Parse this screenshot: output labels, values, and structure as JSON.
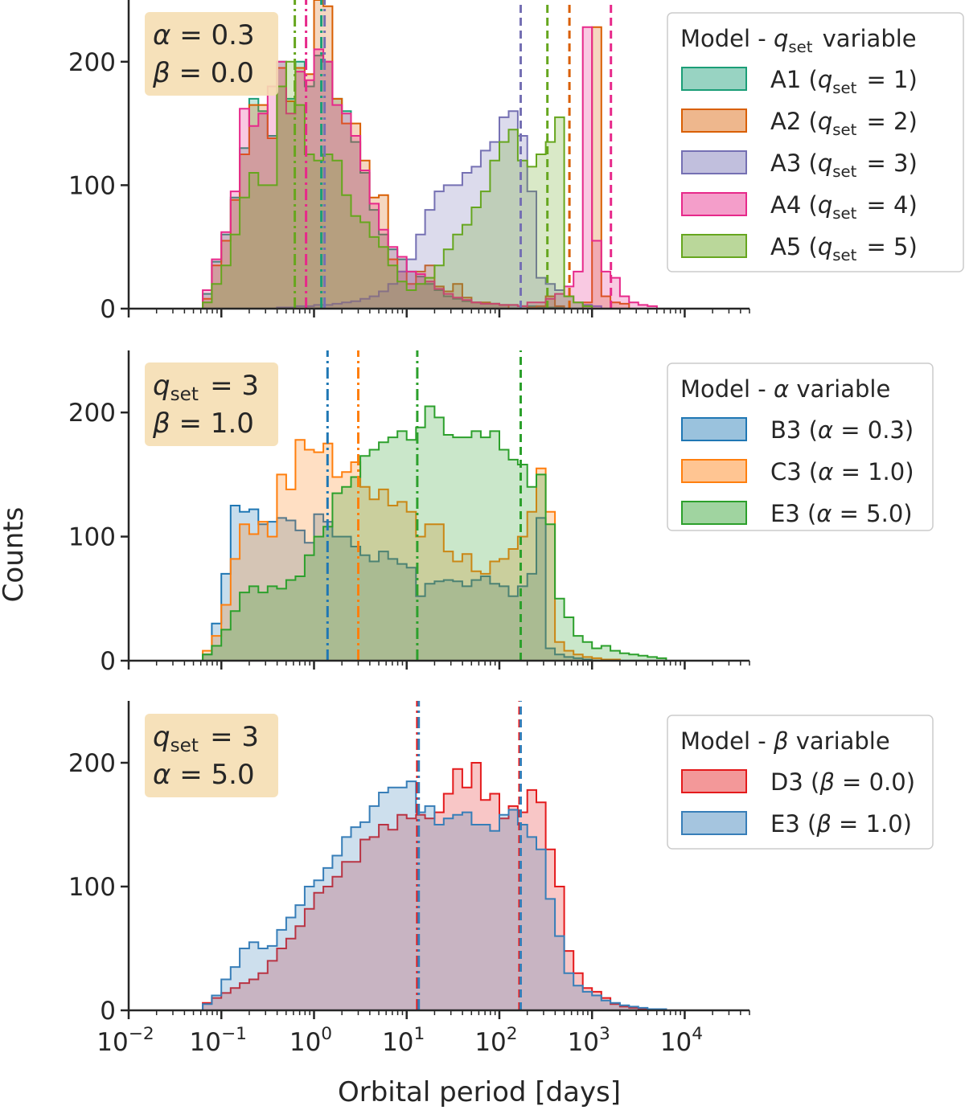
{
  "chart_data": {
    "type": "histogram",
    "xlabel": "Orbital period [days]",
    "ylabel": "Counts",
    "xscale": "log",
    "xlim": [
      0.01,
      50000
    ],
    "x_ticks": [
      {
        "value": 0.01,
        "base": "10",
        "exp": "−2"
      },
      {
        "value": 0.1,
        "base": "10",
        "exp": "−1"
      },
      {
        "value": 1,
        "base": "10",
        "exp": "0"
      },
      {
        "value": 10,
        "base": "10",
        "exp": "1"
      },
      {
        "value": 100,
        "base": "10",
        "exp": "2"
      },
      {
        "value": 1000,
        "base": "10",
        "exp": "3"
      },
      {
        "value": 10000,
        "base": "10",
        "exp": "4"
      }
    ],
    "ylim": [
      0,
      250
    ],
    "y_ticks": [
      0,
      100,
      200
    ],
    "bin_edges": [
      0.063,
      0.079,
      0.1,
      0.126,
      0.158,
      0.2,
      0.251,
      0.316,
      0.398,
      0.501,
      0.631,
      0.794,
      1.0,
      1.26,
      1.58,
      2.0,
      2.51,
      3.16,
      3.98,
      5.01,
      6.31,
      7.94,
      10.0,
      12.6,
      15.8,
      20.0,
      25.1,
      31.6,
      39.8,
      50.1,
      63.1,
      79.4,
      100,
      126,
      158,
      200,
      251,
      316,
      398,
      501,
      631,
      794,
      1000,
      1260,
      1580,
      2000,
      2510,
      3160,
      3980,
      5010,
      6310,
      7940,
      10000
    ],
    "panels": [
      {
        "annotation": [
          "α = 0.3",
          "β = 0.0"
        ],
        "legend_title": "Model - q_set variable",
        "series": [
          {
            "name": "A1",
            "label": "A1 (q_set = 1)",
            "color": "#1b9e77",
            "values": [
              12,
              38,
              60,
              90,
              130,
              170,
              160,
              140,
              200,
              170,
              200,
              180,
              205,
              200,
              170,
              160,
              135,
              110,
              80,
              60,
              48,
              40,
              30,
              26,
              20,
              15,
              10,
              8,
              6,
              5,
              4,
              4,
              3,
              3,
              2,
              2,
              1,
              1,
              1,
              0,
              0,
              0,
              0,
              0,
              0,
              0,
              0,
              0,
              0,
              0,
              0,
              0
            ],
            "median": 1.2,
            "median_style": "dashdot"
          },
          {
            "name": "A2",
            "label": "A2 (q_set = 2)",
            "color": "#d95f02",
            "values": [
              8,
              35,
              55,
              88,
              125,
              165,
              165,
              138,
              195,
              168,
              195,
              190,
              250,
              245,
              170,
              150,
              150,
              120,
              90,
              92,
              40,
              30,
              20,
              30,
              35,
              18,
              14,
              20,
              9,
              5,
              5,
              4,
              3,
              0,
              0,
              1,
              2,
              10,
              2,
              0,
              0,
              5,
              228,
              10,
              5,
              4,
              0,
              0,
              0,
              0,
              0,
              0
            ],
            "median": 570,
            "median_style": "dashed"
          },
          {
            "name": "A3",
            "label": "A3 (q_set = 3)",
            "color": "#7570b3",
            "values": [
              0,
              0,
              0,
              0,
              0,
              0,
              0,
              0,
              1,
              1,
              2,
              2,
              3,
              3,
              4,
              5,
              6,
              8,
              10,
              14,
              20,
              30,
              40,
              60,
              80,
              95,
              100,
              100,
              110,
              115,
              128,
              135,
              155,
              160,
              140,
              95,
              25,
              20,
              15,
              10,
              5,
              3,
              2,
              0,
              0,
              0,
              0,
              0,
              0,
              0,
              0,
              0
            ],
            "median": 170,
            "median_style": "dashed"
          },
          {
            "name": "A4",
            "label": "A4 (q_set = 4)",
            "color": "#e7298a",
            "values": [
              15,
              40,
              62,
              95,
              162,
              148,
              158,
              180,
              200,
              158,
              192,
              185,
              210,
              200,
              165,
              158,
              140,
              112,
              85,
              64,
              50,
              42,
              30,
              28,
              22,
              16,
              12,
              9,
              7,
              5,
              4,
              4,
              3,
              3,
              2,
              5,
              5,
              8,
              12,
              18,
              30,
              228,
              55,
              30,
              25,
              10,
              5,
              3,
              2,
              0,
              0,
              0
            ],
            "median": 1600,
            "median_style": "dashed"
          },
          {
            "name": "A5",
            "label": "A5 (q_set = 5)",
            "color": "#66a61e",
            "values": [
              5,
              20,
              35,
              60,
              90,
              110,
              100,
              100,
              180,
              200,
              165,
              125,
              120,
              125,
              120,
              92,
              75,
              70,
              58,
              50,
              35,
              22,
              15,
              20,
              25,
              35,
              48,
              60,
              68,
              82,
              95,
              120,
              135,
              145,
              120,
              115,
              125,
              135,
              155,
              10,
              5,
              2,
              0,
              0,
              0,
              0,
              0,
              0,
              0,
              0,
              0,
              0
            ],
            "median": 330,
            "median_style": "dashed"
          }
        ],
        "median_lines": [
          {
            "x": 0.62,
            "color": "#66a61e",
            "style": "dashdot"
          },
          {
            "x": 0.82,
            "color": "#e7298a",
            "style": "dashdot"
          },
          {
            "x": 1.2,
            "color": "#1b9e77",
            "style": "dashdot"
          },
          {
            "x": 1.3,
            "color": "#7570b3",
            "style": "dashdot"
          },
          {
            "x": 170,
            "color": "#7570b3",
            "style": "dashed"
          },
          {
            "x": 330,
            "color": "#66a61e",
            "style": "dashed"
          },
          {
            "x": 570,
            "color": "#d95f02",
            "style": "dashed"
          },
          {
            "x": 1600,
            "color": "#e7298a",
            "style": "dashed"
          }
        ]
      },
      {
        "annotation": [
          "q_set = 3",
          "β = 1.0"
        ],
        "legend_title": "Model - α variable",
        "series": [
          {
            "name": "B3",
            "label": "B3 (α = 0.3)",
            "color": "#1f77b4",
            "values": [
              5,
              30,
              70,
              125,
              120,
              122,
              110,
              112,
              115,
              113,
              105,
              95,
              118,
              112,
              100,
              100,
              92,
              85,
              80,
              88,
              82,
              78,
              75,
              52,
              62,
              64,
              65,
              64,
              60,
              65,
              68,
              62,
              60,
              52,
              60,
              70,
              115,
              10,
              5,
              3,
              2,
              1,
              0,
              0,
              0,
              0,
              0,
              0,
              0,
              0,
              0,
              0
            ],
            "median": 1.4,
            "median_style": "dashdot"
          },
          {
            "name": "C3",
            "label": "C3 (α = 1.0)",
            "color": "#ff7f0e",
            "values": [
              8,
              20,
              45,
              82,
              110,
              102,
              112,
              100,
              150,
              138,
              178,
              170,
              168,
              175,
              148,
              152,
              160,
              140,
              130,
              138,
              125,
              128,
              120,
              100,
              110,
              110,
              88,
              80,
              86,
              72,
              70,
              80,
              82,
              90,
              100,
              120,
              155,
              120,
              15,
              8,
              5,
              3,
              2,
              1,
              1,
              0,
              0,
              0,
              0,
              0,
              0,
              0
            ],
            "median": 3.0,
            "median_style": "dashdot"
          },
          {
            "name": "E3",
            "label": "E3 (α = 5.0)",
            "color": "#2ca02c",
            "values": [
              5,
              12,
              25,
              40,
              55,
              60,
              55,
              60,
              58,
              65,
              68,
              85,
              100,
              108,
              135,
              140,
              148,
              165,
              170,
              176,
              180,
              185,
              178,
              188,
              205,
              196,
              182,
              180,
              180,
              185,
              180,
              185,
              170,
              162,
              158,
              140,
              150,
              110,
              50,
              35,
              20,
              15,
              10,
              12,
              8,
              6,
              5,
              4,
              3,
              2,
              0,
              0
            ],
            "median": 13,
            "median_style": "dashdot"
          }
        ],
        "median_lines": [
          {
            "x": 1.4,
            "color": "#1f77b4",
            "style": "dashdot"
          },
          {
            "x": 3.0,
            "color": "#ff7f0e",
            "style": "dashdot"
          },
          {
            "x": 13,
            "color": "#2ca02c",
            "style": "dashdot"
          },
          {
            "x": 170,
            "color": "#2ca02c",
            "style": "dashed"
          }
        ]
      },
      {
        "annotation": [
          "q_set = 3",
          "α = 5.0"
        ],
        "legend_title": "Model - β variable",
        "series": [
          {
            "name": "D3",
            "label": "D3 (β = 0.0)",
            "color": "#e41a1c",
            "values": [
              6,
              10,
              14,
              18,
              22,
              25,
              30,
              40,
              50,
              58,
              68,
              82,
              95,
              100,
              108,
              120,
              120,
              138,
              140,
              150,
              146,
              158,
              155,
              158,
              155,
              160,
              175,
              195,
              180,
              200,
              170,
              175,
              155,
              165,
              160,
              178,
              168,
              130,
              100,
              48,
              30,
              18,
              15,
              10,
              5,
              3,
              2,
              1,
              1,
              1,
              0,
              0
            ],
            "median": 13,
            "median_style": "dashdot"
          },
          {
            "name": "E3",
            "label": "E3 (β = 1.0)",
            "color": "#377eb8",
            "values": [
              5,
              12,
              25,
              35,
              50,
              55,
              50,
              52,
              65,
              75,
              85,
              100,
              105,
              115,
              125,
              140,
              148,
              152,
              165,
              176,
              180,
              180,
              185,
              160,
              165,
              150,
              155,
              158,
              160,
              150,
              150,
              145,
              158,
              162,
              150,
              140,
              130,
              90,
              60,
              30,
              20,
              15,
              12,
              8,
              6,
              4,
              3,
              2,
              1,
              1,
              0,
              0
            ],
            "median": 13.5,
            "median_style": "dashdot"
          }
        ],
        "median_lines": [
          {
            "x": 13,
            "color": "#e41a1c",
            "style": "dashdot"
          },
          {
            "x": 13.5,
            "color": "#377eb8",
            "style": "dashdot"
          },
          {
            "x": 165,
            "color": "#e41a1c",
            "style": "dashed"
          },
          {
            "x": 170,
            "color": "#377eb8",
            "style": "dashed"
          }
        ]
      }
    ]
  }
}
